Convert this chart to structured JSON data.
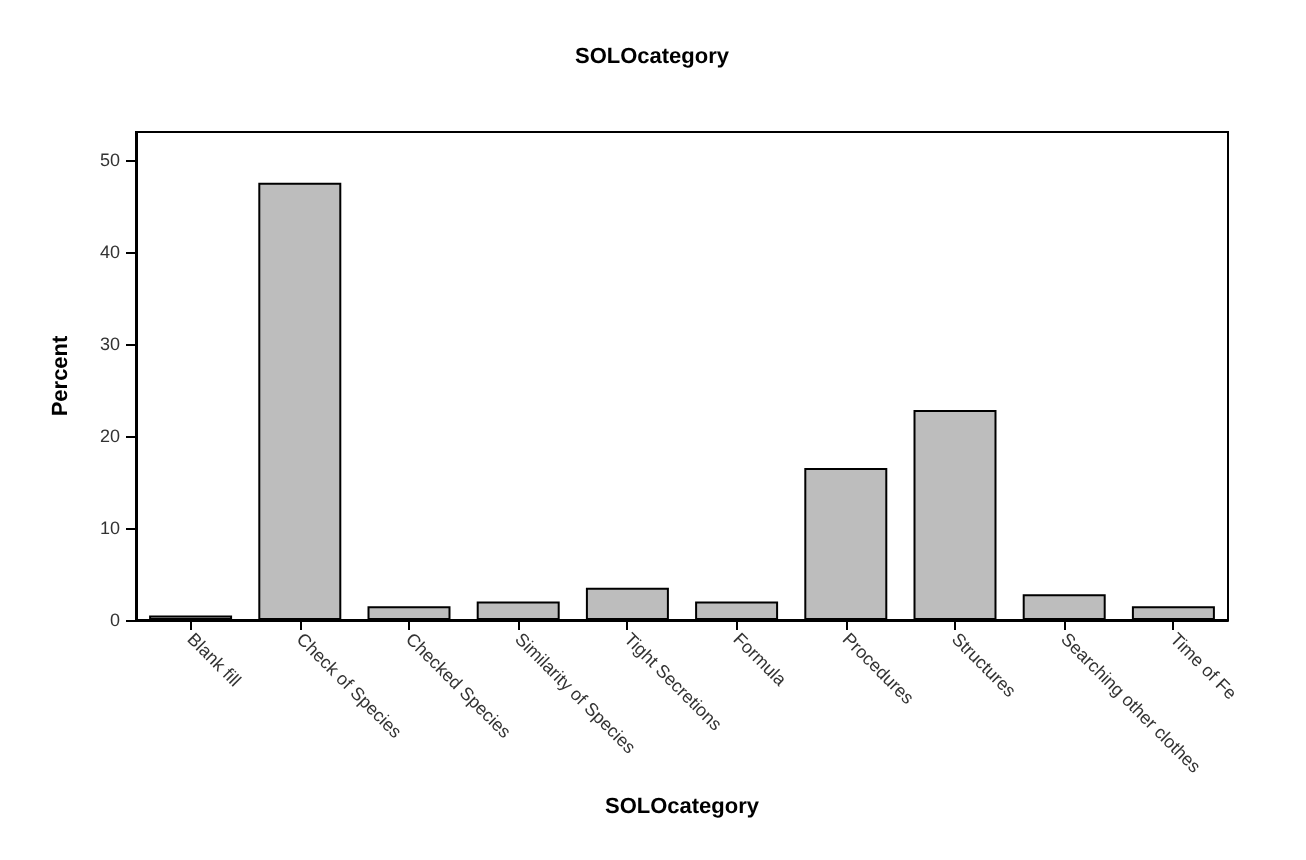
{
  "chart_data": {
    "type": "bar",
    "title": "SOLOcategory",
    "xlabel": "SOLOcategory",
    "ylabel": "Percent",
    "categories": [
      "Blank fill",
      "Check of Species",
      "Checked Species",
      "Similarity of Species",
      "Tight Secretions",
      "Formula",
      "Procedures",
      "Structures",
      "Searching other clothes",
      "Time of Fe"
    ],
    "values": [
      0.5,
      47.5,
      1.5,
      2,
      3.5,
      2,
      16.5,
      22.8,
      2.8,
      1.5
    ],
    "color": "#bdbdbd",
    "ylim": [
      0,
      53
    ],
    "yticks": [
      0,
      10,
      20,
      30,
      40,
      50
    ],
    "grid": false
  }
}
